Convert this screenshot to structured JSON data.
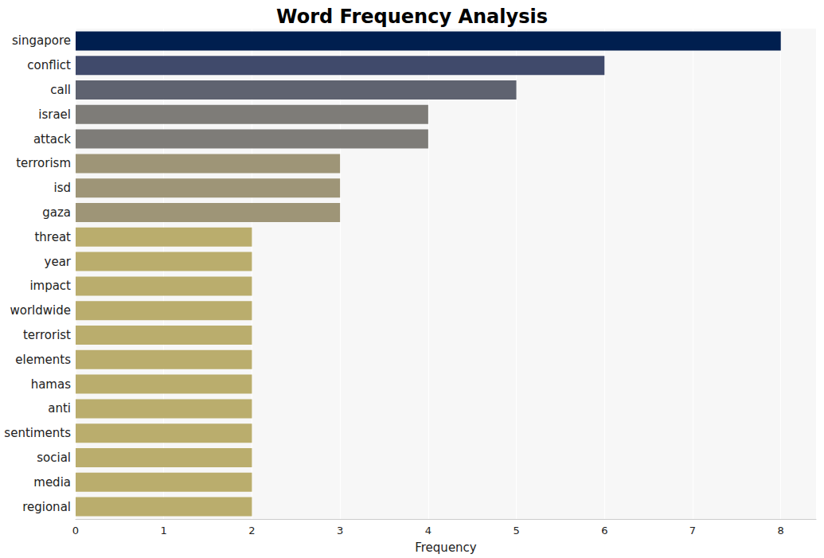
{
  "chart_data": {
    "type": "bar",
    "orientation": "horizontal",
    "title": "Word Frequency Analysis",
    "x_label": "Frequency",
    "categories": [
      "singapore",
      "conflict",
      "call",
      "israel",
      "attack",
      "terrorism",
      "isd",
      "gaza",
      "threat",
      "year",
      "impact",
      "worldwide",
      "terrorist",
      "elements",
      "hamas",
      "anti",
      "sentiments",
      "social",
      "media",
      "regional"
    ],
    "values": [
      8,
      6,
      5,
      4,
      4,
      3,
      3,
      3,
      2,
      2,
      2,
      2,
      2,
      2,
      2,
      2,
      2,
      2,
      2,
      2
    ],
    "colors": [
      "#001f4f",
      "#404a6b",
      "#5f6370",
      "#7e7c78",
      "#7e7c78",
      "#9e9577",
      "#9e9577",
      "#9e9577",
      "#baad6d",
      "#baad6d",
      "#baad6d",
      "#baad6d",
      "#baad6d",
      "#baad6d",
      "#baad6d",
      "#baad6d",
      "#baad6d",
      "#baad6d",
      "#baad6d",
      "#baad6d"
    ],
    "xlim": [
      0,
      8.4
    ],
    "xticks": [
      0,
      1,
      2,
      3,
      4,
      5,
      6,
      7,
      8
    ],
    "grid": true
  }
}
